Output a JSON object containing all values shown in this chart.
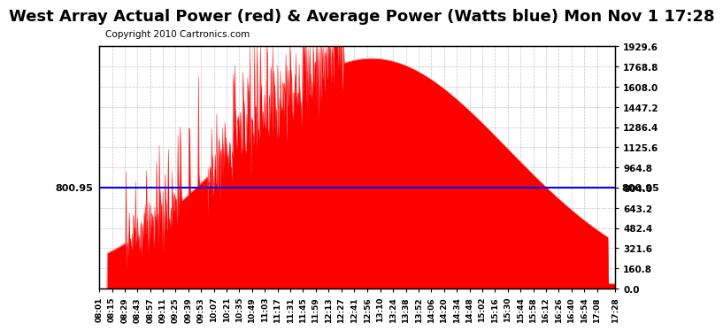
{
  "title": "West Array Actual Power (red) & Average Power (Watts blue) Mon Nov 1 17:28",
  "copyright": "Copyright 2010 Cartronics.com",
  "avg_power": 800.95,
  "ymin": 0.0,
  "ymax": 1929.6,
  "yticks": [
    0.0,
    160.8,
    321.6,
    482.4,
    643.2,
    804.0,
    964.8,
    1125.6,
    1286.4,
    1447.2,
    1608.0,
    1768.8,
    1929.6
  ],
  "ytick_labels": [
    "0.0",
    "160.8",
    "321.6",
    "482.4",
    "643.2",
    "804.0",
    "964.8",
    "1125.6",
    "1286.4",
    "1447.2",
    "1608.0",
    "1768.8",
    "1929.6"
  ],
  "background_color": "#ffffff",
  "fill_color": "#ff0000",
  "line_color": "#0000ff",
  "grid_color": "#aaaaaa",
  "title_fontsize": 13,
  "copyright_fontsize": 7.5,
  "xlabel": "",
  "xtick_labels": [
    "08:01",
    "08:15",
    "08:29",
    "08:43",
    "08:57",
    "09:11",
    "09:25",
    "09:39",
    "09:53",
    "10:07",
    "10:21",
    "10:35",
    "10:49",
    "11:03",
    "11:17",
    "11:31",
    "11:45",
    "11:59",
    "12:13",
    "12:27",
    "12:41",
    "12:56",
    "13:10",
    "13:24",
    "13:38",
    "13:52",
    "14:06",
    "14:20",
    "14:34",
    "14:48",
    "15:02",
    "15:16",
    "15:30",
    "15:44",
    "15:58",
    "16:12",
    "16:26",
    "16:40",
    "16:54",
    "17:08",
    "17:28"
  ]
}
